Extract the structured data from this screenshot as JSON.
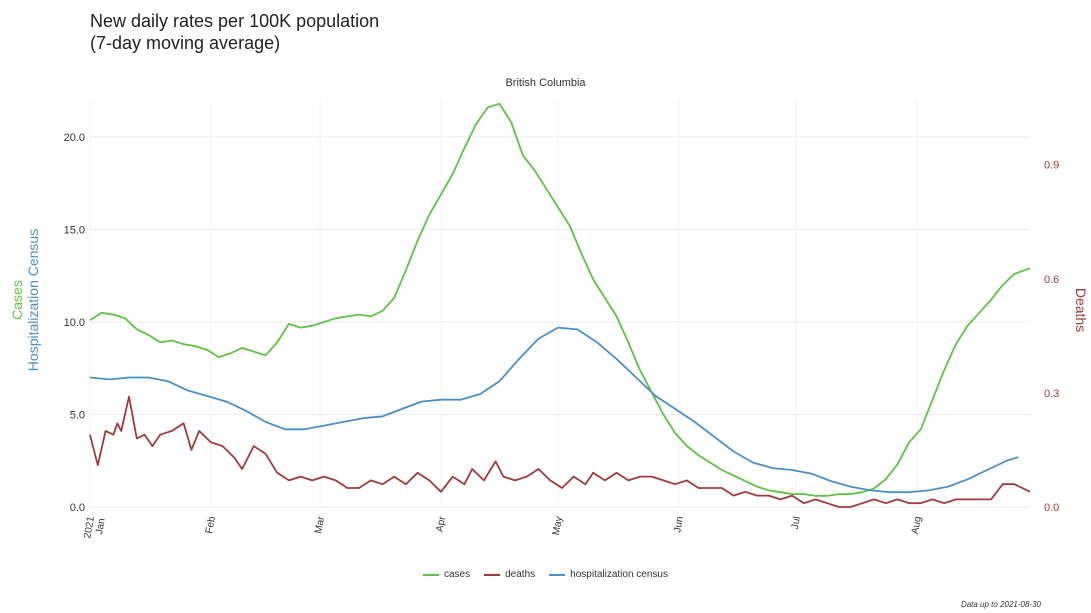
{
  "header": {
    "title_line1": "New daily rates per 100K population",
    "title_line2": "(7-day moving average)",
    "facet": "British Columbia"
  },
  "caption": "Data up to 2021-08-30",
  "legend": [
    {
      "label": "cases",
      "color": "#5cc443"
    },
    {
      "label": "deaths",
      "color": "#a33a3a"
    },
    {
      "label": "hospitalization census",
      "color": "#4a90c8"
    }
  ],
  "chart_data": {
    "type": "line",
    "title": "British Columbia",
    "ylabel_left_line1": "Cases",
    "ylabel_left_line2": "Hospitalization Census",
    "ylabel_right": "Deaths",
    "ylim_left": [
      0,
      22
    ],
    "ylim_right": [
      0,
      1.07
    ],
    "yticks_left": [
      "0.0",
      "5.0",
      "10.0",
      "15.0",
      "20.0"
    ],
    "yticks_left_values": [
      0,
      5,
      10,
      15,
      20
    ],
    "yticks_right": [
      "0.0",
      "0.3",
      "0.6",
      "0.9"
    ],
    "yticks_right_values": [
      0,
      0.3,
      0.6,
      0.9
    ],
    "xlim": [
      "2021-01-01",
      "2021-08-30"
    ],
    "xticks": [
      {
        "date": "2021-01-01",
        "label": "2021\nJan"
      },
      {
        "date": "2021-02-01",
        "label": "Feb"
      },
      {
        "date": "2021-03-01",
        "label": "Mar"
      },
      {
        "date": "2021-04-01",
        "label": "Apr"
      },
      {
        "date": "2021-05-01",
        "label": "May"
      },
      {
        "date": "2021-06-01",
        "label": "Jun"
      },
      {
        "date": "2021-07-01",
        "label": "Jul"
      },
      {
        "date": "2021-08-01",
        "label": "Aug"
      }
    ],
    "grid": true,
    "legend_position": "bottom",
    "series": [
      {
        "name": "cases",
        "axis": "left",
        "color": "#5cc443",
        "points": [
          [
            "2021-01-01",
            10.1
          ],
          [
            "2021-01-04",
            10.5
          ],
          [
            "2021-01-07",
            10.4
          ],
          [
            "2021-01-10",
            10.2
          ],
          [
            "2021-01-13",
            9.6
          ],
          [
            "2021-01-16",
            9.3
          ],
          [
            "2021-01-19",
            8.9
          ],
          [
            "2021-01-22",
            9.0
          ],
          [
            "2021-01-25",
            8.8
          ],
          [
            "2021-01-28",
            8.7
          ],
          [
            "2021-01-31",
            8.5
          ],
          [
            "2021-02-03",
            8.1
          ],
          [
            "2021-02-06",
            8.3
          ],
          [
            "2021-02-09",
            8.6
          ],
          [
            "2021-02-12",
            8.4
          ],
          [
            "2021-02-15",
            8.2
          ],
          [
            "2021-02-18",
            8.9
          ],
          [
            "2021-02-21",
            9.9
          ],
          [
            "2021-02-24",
            9.7
          ],
          [
            "2021-02-27",
            9.8
          ],
          [
            "2021-03-02",
            10.0
          ],
          [
            "2021-03-05",
            10.2
          ],
          [
            "2021-03-08",
            10.3
          ],
          [
            "2021-03-11",
            10.4
          ],
          [
            "2021-03-14",
            10.3
          ],
          [
            "2021-03-17",
            10.6
          ],
          [
            "2021-03-20",
            11.3
          ],
          [
            "2021-03-23",
            12.8
          ],
          [
            "2021-03-26",
            14.4
          ],
          [
            "2021-03-29",
            15.8
          ],
          [
            "2021-04-01",
            16.9
          ],
          [
            "2021-04-04",
            18.0
          ],
          [
            "2021-04-07",
            19.4
          ],
          [
            "2021-04-10",
            20.7
          ],
          [
            "2021-04-13",
            21.6
          ],
          [
            "2021-04-16",
            21.8
          ],
          [
            "2021-04-19",
            20.8
          ],
          [
            "2021-04-22",
            19.0
          ],
          [
            "2021-04-25",
            18.2
          ],
          [
            "2021-04-28",
            17.2
          ],
          [
            "2021-05-01",
            16.2
          ],
          [
            "2021-05-04",
            15.2
          ],
          [
            "2021-05-07",
            13.7
          ],
          [
            "2021-05-10",
            12.3
          ],
          [
            "2021-05-13",
            11.3
          ],
          [
            "2021-05-16",
            10.3
          ],
          [
            "2021-05-19",
            8.9
          ],
          [
            "2021-05-22",
            7.4
          ],
          [
            "2021-05-25",
            6.2
          ],
          [
            "2021-05-28",
            5.0
          ],
          [
            "2021-05-31",
            4.0
          ],
          [
            "2021-06-03",
            3.3
          ],
          [
            "2021-06-06",
            2.8
          ],
          [
            "2021-06-09",
            2.4
          ],
          [
            "2021-06-12",
            2.0
          ],
          [
            "2021-06-15",
            1.7
          ],
          [
            "2021-06-18",
            1.4
          ],
          [
            "2021-06-21",
            1.1
          ],
          [
            "2021-06-24",
            0.9
          ],
          [
            "2021-06-27",
            0.8
          ],
          [
            "2021-06-30",
            0.7
          ],
          [
            "2021-07-03",
            0.7
          ],
          [
            "2021-07-06",
            0.6
          ],
          [
            "2021-07-09",
            0.6
          ],
          [
            "2021-07-12",
            0.7
          ],
          [
            "2021-07-15",
            0.7
          ],
          [
            "2021-07-18",
            0.8
          ],
          [
            "2021-07-21",
            1.0
          ],
          [
            "2021-07-24",
            1.5
          ],
          [
            "2021-07-27",
            2.3
          ],
          [
            "2021-07-30",
            3.5
          ],
          [
            "2021-08-02",
            4.2
          ],
          [
            "2021-08-05",
            5.8
          ],
          [
            "2021-08-08",
            7.4
          ],
          [
            "2021-08-11",
            8.8
          ],
          [
            "2021-08-14",
            9.8
          ],
          [
            "2021-08-17",
            10.5
          ],
          [
            "2021-08-20",
            11.2
          ],
          [
            "2021-08-23",
            12.0
          ],
          [
            "2021-08-26",
            12.6
          ],
          [
            "2021-08-30",
            12.9
          ]
        ]
      },
      {
        "name": "deaths",
        "axis": "right",
        "color": "#a33a3a",
        "points": [
          [
            "2021-01-01",
            0.19
          ],
          [
            "2021-01-03",
            0.11
          ],
          [
            "2021-01-05",
            0.2
          ],
          [
            "2021-01-07",
            0.19
          ],
          [
            "2021-01-08",
            0.22
          ],
          [
            "2021-01-09",
            0.2
          ],
          [
            "2021-01-11",
            0.29
          ],
          [
            "2021-01-13",
            0.18
          ],
          [
            "2021-01-15",
            0.19
          ],
          [
            "2021-01-17",
            0.16
          ],
          [
            "2021-01-19",
            0.19
          ],
          [
            "2021-01-22",
            0.2
          ],
          [
            "2021-01-25",
            0.22
          ],
          [
            "2021-01-27",
            0.15
          ],
          [
            "2021-01-29",
            0.2
          ],
          [
            "2021-02-01",
            0.17
          ],
          [
            "2021-02-04",
            0.16
          ],
          [
            "2021-02-07",
            0.13
          ],
          [
            "2021-02-09",
            0.1
          ],
          [
            "2021-02-12",
            0.16
          ],
          [
            "2021-02-15",
            0.14
          ],
          [
            "2021-02-18",
            0.09
          ],
          [
            "2021-02-21",
            0.07
          ],
          [
            "2021-02-24",
            0.08
          ],
          [
            "2021-02-27",
            0.07
          ],
          [
            "2021-03-02",
            0.08
          ],
          [
            "2021-03-05",
            0.07
          ],
          [
            "2021-03-08",
            0.05
          ],
          [
            "2021-03-11",
            0.05
          ],
          [
            "2021-03-14",
            0.07
          ],
          [
            "2021-03-17",
            0.06
          ],
          [
            "2021-03-20",
            0.08
          ],
          [
            "2021-03-23",
            0.06
          ],
          [
            "2021-03-26",
            0.09
          ],
          [
            "2021-03-29",
            0.07
          ],
          [
            "2021-04-01",
            0.04
          ],
          [
            "2021-04-04",
            0.08
          ],
          [
            "2021-04-07",
            0.06
          ],
          [
            "2021-04-09",
            0.1
          ],
          [
            "2021-04-12",
            0.07
          ],
          [
            "2021-04-15",
            0.12
          ],
          [
            "2021-04-17",
            0.08
          ],
          [
            "2021-04-20",
            0.07
          ],
          [
            "2021-04-23",
            0.08
          ],
          [
            "2021-04-26",
            0.1
          ],
          [
            "2021-04-29",
            0.07
          ],
          [
            "2021-05-02",
            0.05
          ],
          [
            "2021-05-05",
            0.08
          ],
          [
            "2021-05-08",
            0.06
          ],
          [
            "2021-05-10",
            0.09
          ],
          [
            "2021-05-13",
            0.07
          ],
          [
            "2021-05-16",
            0.09
          ],
          [
            "2021-05-19",
            0.07
          ],
          [
            "2021-05-22",
            0.08
          ],
          [
            "2021-05-25",
            0.08
          ],
          [
            "2021-05-28",
            0.07
          ],
          [
            "2021-05-31",
            0.06
          ],
          [
            "2021-06-03",
            0.07
          ],
          [
            "2021-06-06",
            0.05
          ],
          [
            "2021-06-09",
            0.05
          ],
          [
            "2021-06-12",
            0.05
          ],
          [
            "2021-06-15",
            0.03
          ],
          [
            "2021-06-18",
            0.04
          ],
          [
            "2021-06-21",
            0.03
          ],
          [
            "2021-06-24",
            0.03
          ],
          [
            "2021-06-27",
            0.02
          ],
          [
            "2021-06-30",
            0.03
          ],
          [
            "2021-07-03",
            0.01
          ],
          [
            "2021-07-06",
            0.02
          ],
          [
            "2021-07-09",
            0.01
          ],
          [
            "2021-07-12",
            0.0
          ],
          [
            "2021-07-15",
            0.0
          ],
          [
            "2021-07-18",
            0.01
          ],
          [
            "2021-07-21",
            0.02
          ],
          [
            "2021-07-24",
            0.01
          ],
          [
            "2021-07-27",
            0.02
          ],
          [
            "2021-07-30",
            0.01
          ],
          [
            "2021-08-02",
            0.01
          ],
          [
            "2021-08-05",
            0.02
          ],
          [
            "2021-08-08",
            0.01
          ],
          [
            "2021-08-11",
            0.02
          ],
          [
            "2021-08-14",
            0.02
          ],
          [
            "2021-08-17",
            0.02
          ],
          [
            "2021-08-20",
            0.02
          ],
          [
            "2021-08-23",
            0.06
          ],
          [
            "2021-08-26",
            0.06
          ],
          [
            "2021-08-28",
            0.05
          ],
          [
            "2021-08-30",
            0.04
          ]
        ]
      },
      {
        "name": "hospitalization census",
        "axis": "left",
        "color": "#4a90c8",
        "points": [
          [
            "2021-01-01",
            7.0
          ],
          [
            "2021-01-06",
            6.9
          ],
          [
            "2021-01-11",
            7.0
          ],
          [
            "2021-01-16",
            7.0
          ],
          [
            "2021-01-21",
            6.8
          ],
          [
            "2021-01-26",
            6.3
          ],
          [
            "2021-01-31",
            6.0
          ],
          [
            "2021-02-05",
            5.7
          ],
          [
            "2021-02-10",
            5.2
          ],
          [
            "2021-02-15",
            4.6
          ],
          [
            "2021-02-20",
            4.2
          ],
          [
            "2021-02-25",
            4.2
          ],
          [
            "2021-03-02",
            4.4
          ],
          [
            "2021-03-07",
            4.6
          ],
          [
            "2021-03-12",
            4.8
          ],
          [
            "2021-03-17",
            4.9
          ],
          [
            "2021-03-22",
            5.3
          ],
          [
            "2021-03-27",
            5.7
          ],
          [
            "2021-04-01",
            5.8
          ],
          [
            "2021-04-06",
            5.8
          ],
          [
            "2021-04-11",
            6.1
          ],
          [
            "2021-04-16",
            6.8
          ],
          [
            "2021-04-21",
            8.0
          ],
          [
            "2021-04-26",
            9.1
          ],
          [
            "2021-05-01",
            9.7
          ],
          [
            "2021-05-06",
            9.6
          ],
          [
            "2021-05-11",
            8.9
          ],
          [
            "2021-05-16",
            8.0
          ],
          [
            "2021-05-21",
            7.0
          ],
          [
            "2021-05-26",
            6.0
          ],
          [
            "2021-05-31",
            5.3
          ],
          [
            "2021-06-05",
            4.6
          ],
          [
            "2021-06-10",
            3.8
          ],
          [
            "2021-06-15",
            3.0
          ],
          [
            "2021-06-20",
            2.4
          ],
          [
            "2021-06-25",
            2.1
          ],
          [
            "2021-06-30",
            2.0
          ],
          [
            "2021-07-05",
            1.8
          ],
          [
            "2021-07-10",
            1.4
          ],
          [
            "2021-07-15",
            1.1
          ],
          [
            "2021-07-20",
            0.9
          ],
          [
            "2021-07-25",
            0.8
          ],
          [
            "2021-07-30",
            0.8
          ],
          [
            "2021-08-04",
            0.9
          ],
          [
            "2021-08-09",
            1.1
          ],
          [
            "2021-08-14",
            1.5
          ],
          [
            "2021-08-19",
            2.0
          ],
          [
            "2021-08-24",
            2.5
          ],
          [
            "2021-08-27",
            2.7
          ]
        ]
      }
    ]
  }
}
